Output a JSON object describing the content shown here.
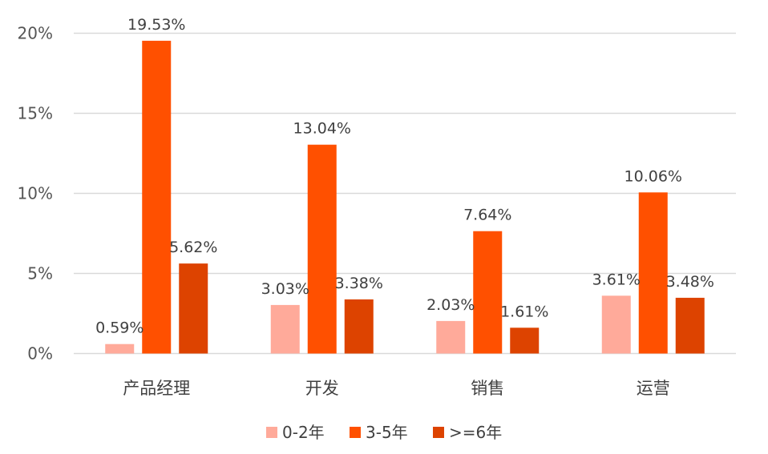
{
  "chart_data": {
    "type": "bar",
    "categories": [
      "产品经理",
      "开发",
      "销售",
      "运营"
    ],
    "series": [
      {
        "name": "0-2年",
        "color": "#FFAA9A",
        "values": [
          0.59,
          3.03,
          2.03,
          3.61
        ],
        "labels": [
          "0.59%",
          "3.03%",
          "2.03%",
          "3.61%"
        ]
      },
      {
        "name": "3-5年",
        "color": "#FF5000",
        "values": [
          19.53,
          13.04,
          7.64,
          10.06
        ],
        "labels": [
          "19.53%",
          "13.04%",
          "7.64%",
          "10.06%"
        ]
      },
      {
        "name": ">=6年",
        "color": "#DD4300",
        "values": [
          5.62,
          3.38,
          1.61,
          3.48
        ],
        "labels": [
          "5.62%",
          "3.38%",
          "1.61%",
          "3.48%"
        ]
      }
    ],
    "ylim": [
      0,
      20
    ],
    "yticks": [
      0,
      5,
      10,
      15,
      20
    ],
    "ytick_labels": [
      "0%",
      "5%",
      "10%",
      "15%",
      "20%"
    ],
    "grid": true,
    "legend_position": "bottom"
  }
}
